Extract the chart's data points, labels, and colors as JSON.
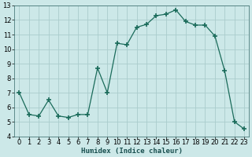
{
  "x": [
    0,
    1,
    2,
    3,
    4,
    5,
    6,
    7,
    8,
    9,
    10,
    11,
    12,
    13,
    14,
    15,
    16,
    17,
    18,
    19,
    20,
    21,
    22,
    23
  ],
  "y": [
    7.0,
    5.5,
    5.4,
    6.5,
    5.4,
    5.3,
    5.5,
    5.5,
    8.7,
    7.0,
    10.4,
    10.3,
    11.5,
    11.7,
    12.3,
    12.4,
    12.7,
    11.9,
    11.65,
    11.65,
    10.9,
    8.5,
    5.0,
    4.5
  ],
  "line_color": "#1a6b5a",
  "marker": "+",
  "marker_size": 4,
  "marker_lw": 1.2,
  "bg_color": "#cce8e8",
  "grid_color": "#aacccc",
  "xlabel": "Humidex (Indice chaleur)",
  "xlim": [
    -0.5,
    23.5
  ],
  "ylim": [
    4,
    13
  ],
  "yticks": [
    4,
    5,
    6,
    7,
    8,
    9,
    10,
    11,
    12,
    13
  ],
  "xticks": [
    0,
    1,
    2,
    3,
    4,
    5,
    6,
    7,
    8,
    9,
    10,
    11,
    12,
    13,
    14,
    15,
    16,
    17,
    18,
    19,
    20,
    21,
    22,
    23
  ],
  "label_fontsize": 6.5,
  "tick_fontsize": 6.0,
  "line_width": 0.9
}
